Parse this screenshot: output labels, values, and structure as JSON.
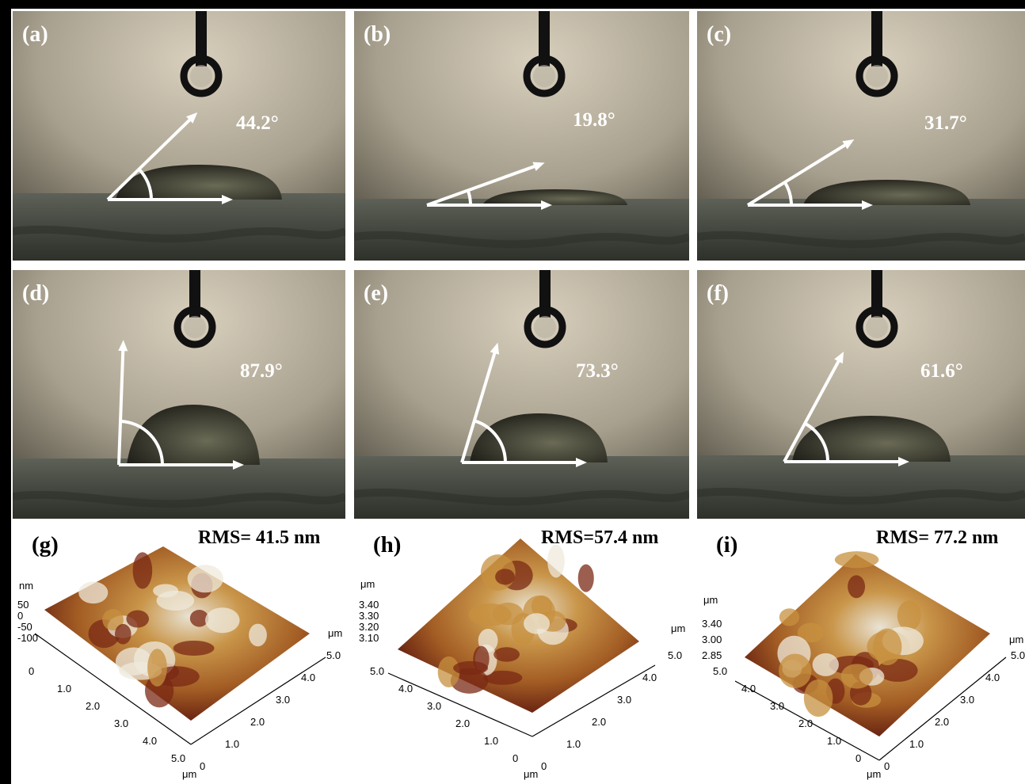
{
  "panels": [
    {
      "label": "(a)",
      "angle": "44.2°",
      "angle_value": 44.2
    },
    {
      "label": "(b)",
      "angle": "19.8°",
      "angle_value": 19.8
    },
    {
      "label": "(c)",
      "angle": "31.7°",
      "angle_value": 31.7
    },
    {
      "label": "(d)",
      "angle": "87.9°",
      "angle_value": 87.9
    },
    {
      "label": "(e)",
      "angle": "73.3°",
      "angle_value": 73.3
    },
    {
      "label": "(f)",
      "angle": "61.6°",
      "angle_value": 61.6
    }
  ],
  "afm": [
    {
      "label": "(g)",
      "rms": "RMS= 41.5 nm",
      "z_unit": "nm",
      "z_ticks": [
        "50",
        "0",
        "-50",
        "-100"
      ],
      "x_ticks": [
        "0",
        "1.0",
        "2.0",
        "3.0",
        "4.0",
        "5.0"
      ],
      "y_ticks": [
        "0",
        "1.0",
        "2.0",
        "3.0",
        "4.0",
        "5.0"
      ],
      "unit": "μm",
      "z_extra": "0",
      "side_unit": "μm"
    },
    {
      "label": "(h)",
      "rms": "RMS=57.4 nm",
      "z_unit": "μm",
      "z_ticks": [
        "3.40",
        "3.30",
        "3.20",
        "3.10"
      ],
      "x_ticks": [
        "5.0",
        "4.0",
        "3.0",
        "2.0",
        "1.0",
        "0"
      ],
      "y_ticks": [
        "0",
        "1.0",
        "2.0",
        "3.0",
        "4.0",
        "5.0"
      ],
      "unit": "μm",
      "z_extra": "3.40",
      "side_unit": "μm"
    },
    {
      "label": "(i)",
      "rms": "RMS= 77.2 nm",
      "z_unit": "μm",
      "z_ticks": [
        "3.40",
        "3.00",
        "2.85"
      ],
      "x_ticks": [
        "5.0",
        "4.0",
        "3.0",
        "2.0",
        "1.0",
        "0"
      ],
      "y_ticks": [
        "0",
        "1.0",
        "2.0",
        "3.0",
        "4.0",
        "5.0"
      ],
      "unit": "μm",
      "z_extra": "",
      "side_unit": "μm"
    }
  ],
  "colors": {
    "arrow": "#ffffff",
    "background_top": "#c9bfae",
    "substrate": "#4a4c44",
    "afm_high": "#f3efe6",
    "afm_mid": "#c08a3a",
    "afm_low": "#6e1a10"
  }
}
